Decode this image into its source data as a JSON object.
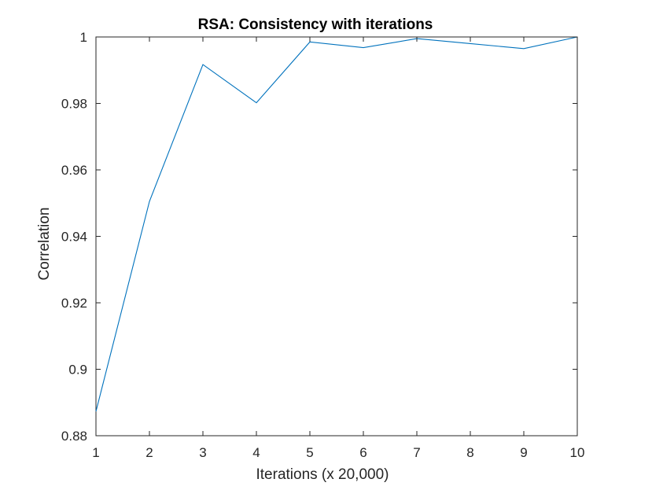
{
  "chart_data": {
    "type": "line",
    "title": "RSA: Consistency with iterations",
    "xlabel": "Iterations (x 20,000)",
    "ylabel": "Correlation",
    "xlim": [
      1,
      10
    ],
    "ylim": [
      0.88,
      1
    ],
    "xticks": [
      1,
      2,
      3,
      4,
      5,
      6,
      7,
      8,
      9,
      10
    ],
    "xtick_labels": [
      "1",
      "2",
      "3",
      "4",
      "5",
      "6",
      "7",
      "8",
      "9",
      "10"
    ],
    "yticks": [
      0.88,
      0.9,
      0.92,
      0.94,
      0.96,
      0.98,
      1
    ],
    "ytick_labels": [
      "0.88",
      "0.9",
      "0.92",
      "0.94",
      "0.96",
      "0.98",
      "1"
    ],
    "grid": false,
    "box": true,
    "series": [
      {
        "color": "#0072BD",
        "x": [
          1,
          2,
          3,
          4,
          5,
          6,
          7,
          8,
          9,
          10
        ],
        "y": [
          0.8873,
          0.9505,
          0.9917,
          0.9802,
          0.9985,
          0.9968,
          0.9995,
          0.998,
          0.9965,
          1.0
        ]
      }
    ]
  }
}
